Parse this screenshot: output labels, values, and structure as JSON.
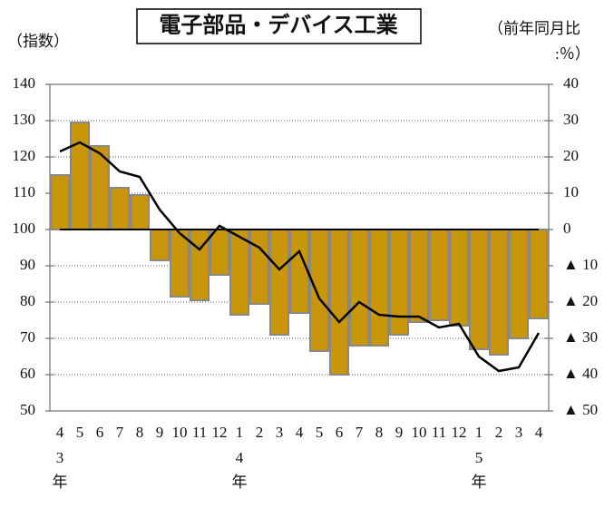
{
  "chart_data": {
    "type": "bar-line",
    "title": "電子部品・デバイス工業",
    "y_label": "（指数）",
    "y2_label": "（前年同月比",
    "y2_label_2": ":％）",
    "categories": [
      "4",
      "5",
      "6",
      "7",
      "8",
      "9",
      "10",
      "11",
      "12",
      "1",
      "2",
      "3",
      "4",
      "5",
      "6",
      "7",
      "8",
      "9",
      "10",
      "11",
      "12",
      "1",
      "2",
      "3",
      "4"
    ],
    "year_labels": [
      "3",
      null,
      null,
      null,
      null,
      null,
      null,
      null,
      null,
      "4",
      null,
      null,
      null,
      null,
      null,
      null,
      null,
      null,
      null,
      null,
      null,
      "5",
      null,
      null,
      null
    ],
    "year_unit": "年",
    "series": [
      {
        "name": "前年同月比",
        "type": "bar",
        "axis": "y2",
        "color": "#c8960a",
        "values": [
          15,
          29.5,
          23,
          11.5,
          9.5,
          -8.5,
          -18.5,
          -19.5,
          -12.5,
          -23.5,
          -20.5,
          -29,
          -23,
          -33.5,
          -40,
          -32,
          -32,
          -29,
          -25.5,
          -25,
          -26.5,
          -33,
          -34.5,
          -30,
          -24.5
        ]
      },
      {
        "name": "指数",
        "type": "line",
        "axis": "y",
        "color": "#000000",
        "values": [
          121.5,
          124,
          121,
          116,
          114.5,
          105.5,
          99,
          94.5,
          101,
          98,
          95,
          89,
          94,
          81,
          74.5,
          80,
          76.5,
          76,
          76,
          73,
          74,
          65,
          61,
          62,
          71.5
        ]
      }
    ],
    "ylim": [
      50,
      140
    ],
    "yticks": [
      50,
      60,
      70,
      80,
      90,
      100,
      110,
      120,
      130,
      140
    ],
    "y2lim": [
      -50,
      40
    ],
    "y2ticks": [
      {
        "value": -50,
        "label": "▲ 50"
      },
      {
        "value": -40,
        "label": "▲ 40"
      },
      {
        "value": -30,
        "label": "▲ 30"
      },
      {
        "value": -20,
        "label": "▲ 20"
      },
      {
        "value": -10,
        "label": "▲ 10"
      },
      0,
      10,
      20,
      30,
      40
    ],
    "grid": true
  }
}
